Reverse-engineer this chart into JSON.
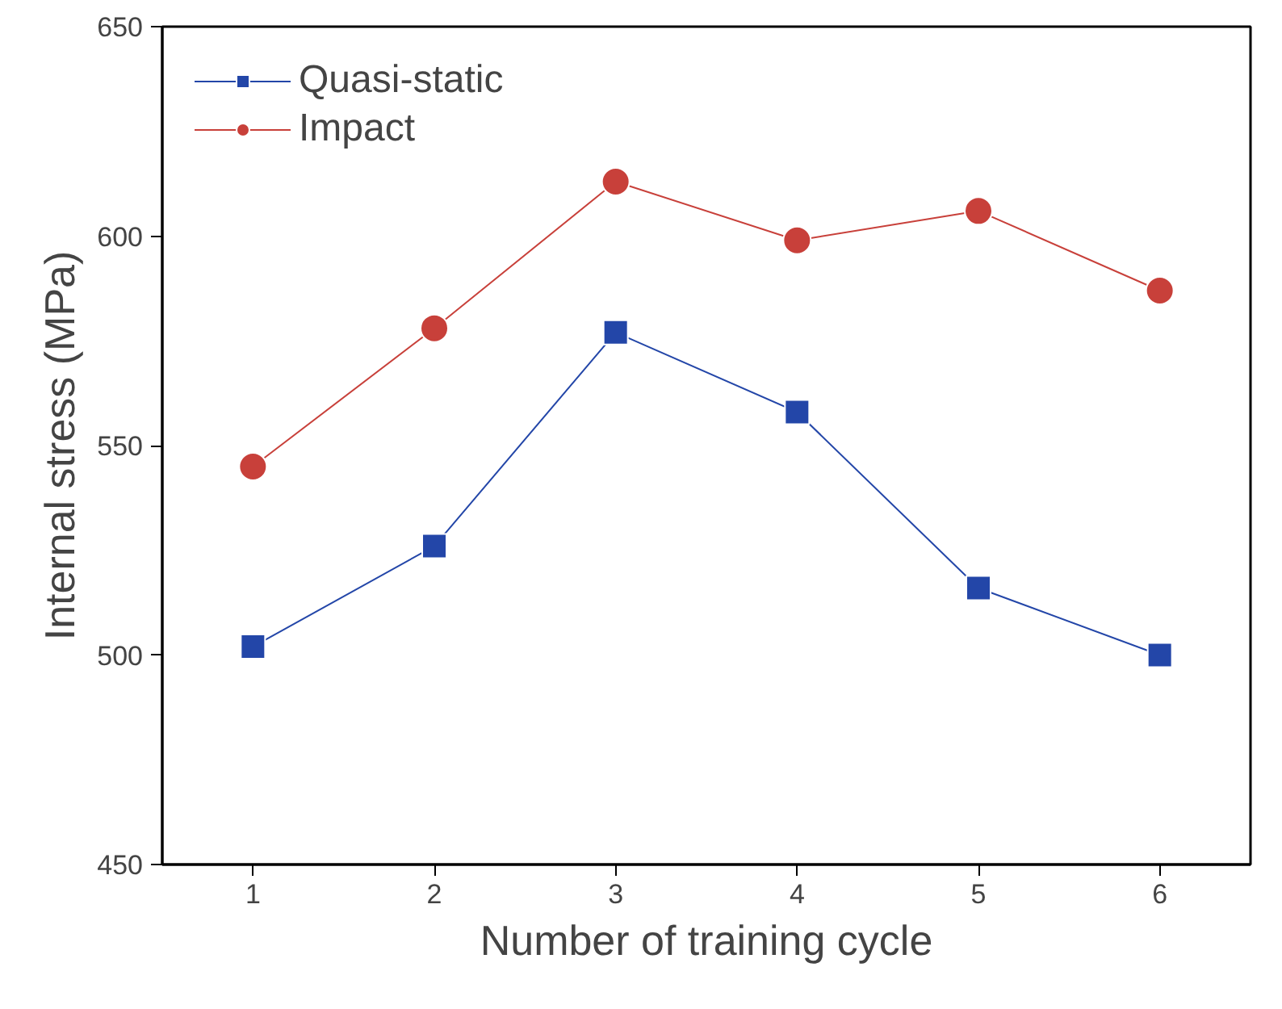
{
  "chart_data": {
    "type": "line",
    "xlabel": "Number of training cycle",
    "ylabel": "Internal stress (MPa)",
    "x": [
      1,
      2,
      3,
      4,
      5,
      6
    ],
    "series": [
      {
        "name": "Quasi-static",
        "color": "#2346a8",
        "marker": "square",
        "values": [
          502,
          526,
          577,
          558,
          516,
          500
        ]
      },
      {
        "name": "Impact",
        "color": "#c8403a",
        "marker": "circle",
        "values": [
          545,
          578,
          613,
          599,
          606,
          587
        ]
      }
    ],
    "xlim": [
      0.5,
      6.5
    ],
    "xticks": [
      1,
      2,
      3,
      4,
      5,
      6
    ],
    "ylim": [
      450,
      650
    ],
    "yticks": [
      450,
      500,
      550,
      600,
      650
    ],
    "grid": false,
    "legend": "top left",
    "line_style": "solid"
  }
}
